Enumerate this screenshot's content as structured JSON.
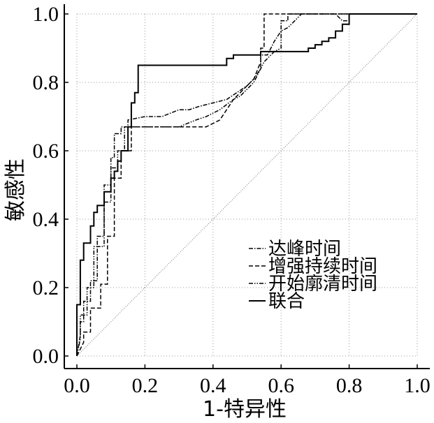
{
  "chart_data": {
    "type": "line",
    "title": "",
    "xlabel": "1-特异性",
    "ylabel": "敏感性",
    "xlim": [
      0,
      1
    ],
    "ylim": [
      0,
      1
    ],
    "x_ticks": [
      "0.0",
      "0.2",
      "0.4",
      "0.6",
      "0.8",
      "1.0"
    ],
    "y_ticks": [
      "0.0",
      "0.2",
      "0.4",
      "0.6",
      "0.8",
      "1.0"
    ],
    "grid": true,
    "legend_position": "bottom-right",
    "reference_line": {
      "x": [
        0,
        1
      ],
      "y": [
        0,
        1
      ],
      "style": "dotted"
    },
    "series": [
      {
        "name": "达峰时间",
        "dash": "dash-dot",
        "x": [
          0,
          0.01,
          0.01,
          0.02,
          0.02,
          0.04,
          0.04,
          0.06,
          0.06,
          0.08,
          0.08,
          0.1,
          0.1,
          0.11,
          0.11,
          0.13,
          0.13,
          0.15,
          0.15,
          0.2,
          0.25,
          0.3,
          0.33,
          0.36,
          0.4,
          0.44,
          0.47,
          0.5,
          0.52,
          0.54,
          0.54,
          0.56,
          0.58,
          0.6,
          0.6,
          0.62,
          0.62,
          0.76,
          0.78,
          0.8,
          0.8,
          1.0
        ],
        "y": [
          0,
          0.06,
          0.1,
          0.1,
          0.16,
          0.16,
          0.22,
          0.22,
          0.35,
          0.35,
          0.5,
          0.5,
          0.58,
          0.58,
          0.65,
          0.65,
          0.67,
          0.67,
          0.69,
          0.7,
          0.7,
          0.72,
          0.72,
          0.73,
          0.74,
          0.75,
          0.77,
          0.79,
          0.81,
          0.84,
          0.88,
          0.88,
          0.92,
          0.95,
          0.98,
          0.98,
          1.0,
          1.0,
          0.98,
          0.98,
          1.0,
          1.0
        ]
      },
      {
        "name": "增强持续时间",
        "dash": "dash",
        "x": [
          0,
          0.02,
          0.02,
          0.04,
          0.04,
          0.07,
          0.07,
          0.09,
          0.09,
          0.11,
          0.11,
          0.13,
          0.13,
          0.16,
          0.16,
          0.3,
          0.38,
          0.42,
          0.44,
          0.46,
          0.48,
          0.5,
          0.52,
          0.54,
          0.54,
          0.55,
          0.55,
          0.8,
          1.0
        ],
        "y": [
          0,
          0.04,
          0.07,
          0.07,
          0.14,
          0.14,
          0.21,
          0.21,
          0.35,
          0.35,
          0.52,
          0.52,
          0.6,
          0.6,
          0.67,
          0.67,
          0.67,
          0.69,
          0.72,
          0.75,
          0.77,
          0.79,
          0.81,
          0.86,
          0.9,
          0.9,
          1.0,
          1.0,
          1.0
        ]
      },
      {
        "name": "开始廓清时间",
        "dash": "dash-dot-dot",
        "x": [
          0,
          0.01,
          0.01,
          0.03,
          0.03,
          0.05,
          0.05,
          0.08,
          0.08,
          0.1,
          0.1,
          0.12,
          0.12,
          0.14,
          0.14,
          0.18,
          0.25,
          0.3,
          0.35,
          0.38,
          0.42,
          0.46,
          0.48,
          0.5,
          0.52,
          0.55,
          0.58,
          0.6,
          0.6,
          0.62,
          0.64,
          0.66,
          0.8,
          1.0
        ],
        "y": [
          0,
          0.05,
          0.12,
          0.12,
          0.2,
          0.2,
          0.32,
          0.32,
          0.45,
          0.45,
          0.55,
          0.55,
          0.6,
          0.6,
          0.67,
          0.67,
          0.67,
          0.67,
          0.69,
          0.7,
          0.72,
          0.75,
          0.76,
          0.78,
          0.8,
          0.86,
          0.89,
          0.9,
          0.95,
          0.96,
          0.98,
          1.0,
          1.0,
          1.0
        ]
      },
      {
        "name": "联合",
        "dash": "solid",
        "x": [
          0,
          0,
          0.01,
          0.01,
          0.02,
          0.02,
          0.04,
          0.04,
          0.05,
          0.05,
          0.06,
          0.06,
          0.08,
          0.08,
          0.1,
          0.1,
          0.11,
          0.11,
          0.12,
          0.12,
          0.13,
          0.13,
          0.15,
          0.15,
          0.16,
          0.16,
          0.17,
          0.17,
          0.18,
          0.18,
          0.44,
          0.44,
          0.46,
          0.46,
          0.54,
          0.54,
          0.68,
          0.68,
          0.7,
          0.7,
          0.72,
          0.72,
          0.74,
          0.74,
          0.76,
          0.76,
          0.78,
          0.78,
          0.8,
          0.8,
          1.0
        ],
        "y": [
          0,
          0.15,
          0.15,
          0.28,
          0.28,
          0.33,
          0.33,
          0.38,
          0.38,
          0.42,
          0.42,
          0.44,
          0.44,
          0.48,
          0.48,
          0.52,
          0.52,
          0.54,
          0.54,
          0.57,
          0.57,
          0.6,
          0.6,
          0.67,
          0.67,
          0.74,
          0.74,
          0.77,
          0.77,
          0.85,
          0.85,
          0.87,
          0.87,
          0.88,
          0.88,
          0.89,
          0.89,
          0.9,
          0.9,
          0.91,
          0.91,
          0.92,
          0.92,
          0.93,
          0.93,
          0.95,
          0.95,
          0.97,
          0.97,
          1.0,
          1.0
        ]
      }
    ]
  }
}
